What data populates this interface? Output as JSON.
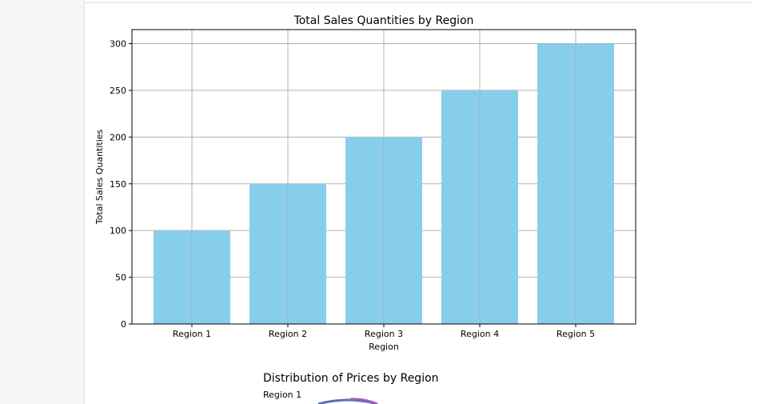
{
  "chart_data": [
    {
      "type": "bar",
      "title": "Total Sales Quantities by Region",
      "xlabel": "Region",
      "ylabel": "Total Sales Quantities",
      "categories": [
        "Region 1",
        "Region 2",
        "Region 3",
        "Region 4",
        "Region 5"
      ],
      "values": [
        100,
        150,
        200,
        250,
        300
      ],
      "ylim": [
        0,
        315
      ],
      "yticks": [
        0,
        50,
        100,
        150,
        200,
        250,
        300
      ],
      "grid": true,
      "bar_color": "#87ceeb"
    },
    {
      "type": "pie",
      "title": "Distribution of Prices by Region",
      "visible_labels": [
        "Region 1"
      ]
    }
  ]
}
